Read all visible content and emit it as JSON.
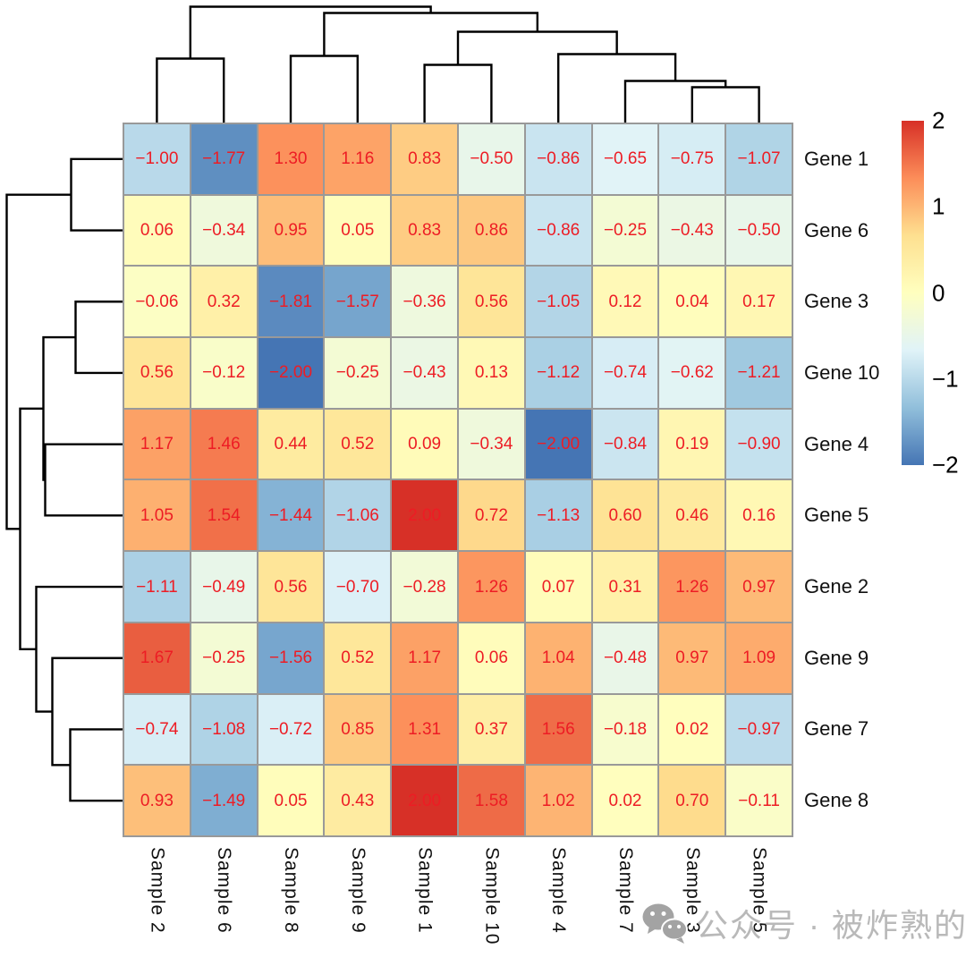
{
  "chart_data": {
    "type": "heatmap",
    "title": "",
    "columns": [
      "Sample 2",
      "Sample 6",
      "Sample 8",
      "Sample 9",
      "Sample 1",
      "Sample 10",
      "Sample 4",
      "Sample 7",
      "Sample 3",
      "Sample 5"
    ],
    "rows": [
      "Gene 1",
      "Gene 6",
      "Gene 3",
      "Gene 10",
      "Gene 4",
      "Gene 5",
      "Gene 2",
      "Gene 9",
      "Gene 7",
      "Gene 8"
    ],
    "values": [
      [
        -1.0,
        -1.77,
        1.3,
        1.16,
        0.83,
        -0.5,
        -0.86,
        -0.65,
        -0.75,
        -1.07
      ],
      [
        0.06,
        -0.34,
        0.95,
        0.05,
        0.83,
        0.86,
        -0.86,
        -0.25,
        -0.43,
        -0.5
      ],
      [
        -0.06,
        0.32,
        -1.81,
        -1.57,
        -0.36,
        0.56,
        -1.05,
        0.12,
        0.04,
        0.17
      ],
      [
        0.56,
        -0.12,
        -2.0,
        -0.25,
        -0.43,
        0.13,
        -1.12,
        -0.74,
        -0.62,
        -1.21
      ],
      [
        1.17,
        1.46,
        0.44,
        0.52,
        0.09,
        -0.34,
        -2.0,
        -0.84,
        0.19,
        -0.9
      ],
      [
        1.05,
        1.54,
        -1.44,
        -1.06,
        2.0,
        0.72,
        -1.13,
        0.6,
        0.46,
        0.16
      ],
      [
        -1.11,
        -0.49,
        0.56,
        -0.7,
        -0.28,
        1.26,
        0.07,
        0.31,
        1.26,
        0.97
      ],
      [
        1.67,
        -0.25,
        -1.56,
        0.52,
        1.17,
        0.06,
        1.04,
        -0.48,
        0.97,
        1.09
      ],
      [
        -0.74,
        -1.08,
        -0.72,
        0.85,
        1.31,
        0.37,
        1.56,
        -0.18,
        0.02,
        -0.97
      ],
      [
        0.93,
        -1.49,
        0.05,
        0.43,
        2.0,
        1.58,
        1.02,
        0.02,
        0.7,
        -0.11
      ]
    ],
    "value_domain": [
      -2,
      2
    ],
    "colorbar_ticks": [
      "2",
      "1",
      "0",
      "−1",
      "−2"
    ],
    "colorbar_tick_values": [
      2,
      1,
      0,
      -1,
      -2
    ],
    "palette_low_to_high": [
      "#4575b4",
      "#91bfdb",
      "#e0f3f8",
      "#ffffbf",
      "#fee090",
      "#fc8d59",
      "#d73027"
    ],
    "cell_value_color": "#ed1c24",
    "border_color": "#999999",
    "dendrogram_color": "#000000",
    "column_dendrogram_merges": [
      [
        8,
        9,
        38
      ],
      [
        7,
        "m0",
        45
      ],
      [
        6,
        "m1",
        75
      ],
      [
        4,
        5,
        63
      ],
      [
        "m3",
        "m2",
        100
      ],
      [
        2,
        3,
        73
      ],
      [
        "m5",
        "m4",
        121
      ],
      [
        0,
        1,
        70
      ],
      [
        "m7",
        "m6",
        128
      ]
    ],
    "row_dendrogram_merges": [
      [
        0,
        1,
        56
      ],
      [
        2,
        3,
        51
      ],
      [
        4,
        5,
        85
      ],
      [
        "m1",
        "m2",
        87
      ],
      [
        8,
        9,
        57
      ],
      [
        7,
        "m4",
        77
      ],
      [
        6,
        "m5",
        95
      ],
      [
        "m3",
        "m6",
        113
      ],
      [
        "m0",
        "m7",
        128
      ]
    ]
  },
  "watermark": {
    "text": "公众号 · 被炸熟的虾",
    "icon": "wechat-icon"
  }
}
